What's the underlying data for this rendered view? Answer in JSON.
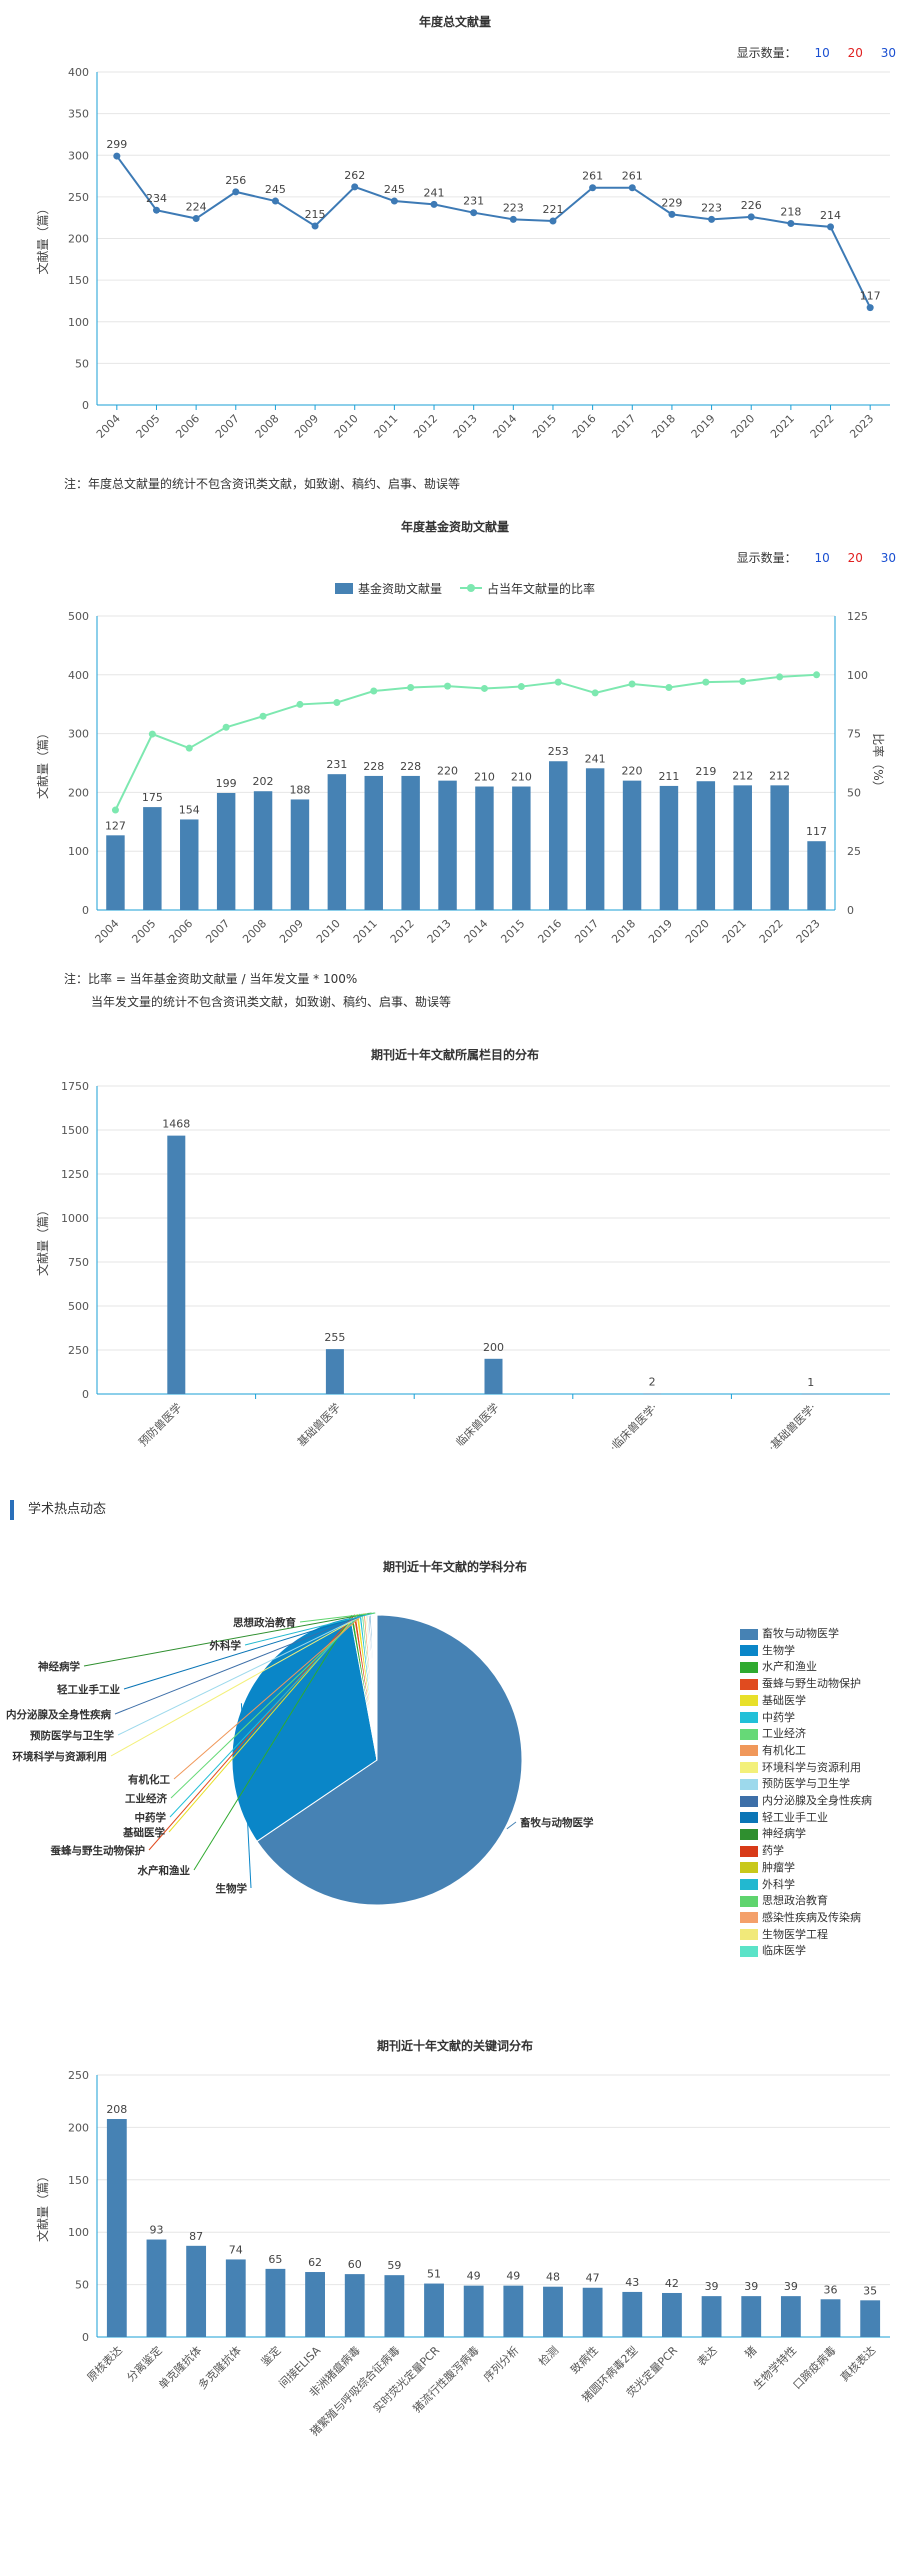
{
  "controls": {
    "label": "显示数量：",
    "options": [
      "10",
      "20",
      "30"
    ],
    "colors": [
      "#1a4fd1",
      "#e02020",
      "#1a4fd1"
    ]
  },
  "chart1": {
    "title": "年度总文献量",
    "note": "注：年度总文献量的统计不包含资讯类文献，如致谢、稿约、启事、勘误等"
  },
  "chart2": {
    "title": "年度基金资助文献量",
    "legend": {
      "bar": "基金资助文献量",
      "line": "占当年文献量的比率"
    },
    "note_line1": "注：比率 = 当年基金资助文献量 / 当年发文量 * 100%",
    "note_line2": "当年发文量的统计不包含资讯类文献，如致谢、稿约、启事、勘误等"
  },
  "chart3": {
    "title": "期刊近十年文献所属栏目的分布"
  },
  "section": {
    "title": "学术热点动态"
  },
  "chart4": {
    "title": "期刊近十年文献的学科分布"
  },
  "chart5": {
    "title": "期刊近十年文献的关键词分布"
  },
  "chart_data": [
    {
      "type": "line",
      "title": "年度总文献量",
      "ylabel": "文献量（篇）",
      "ylim": [
        0,
        400
      ],
      "yticks": [
        0,
        50,
        100,
        150,
        200,
        250,
        300,
        350,
        400
      ],
      "x": [
        "2004",
        "2005",
        "2006",
        "2007",
        "2008",
        "2009",
        "2010",
        "2011",
        "2012",
        "2013",
        "2014",
        "2015",
        "2016",
        "2017",
        "2018",
        "2019",
        "2020",
        "2021",
        "2022",
        "2023"
      ],
      "values": [
        299,
        234,
        224,
        256,
        245,
        215,
        262,
        245,
        241,
        231,
        223,
        221,
        261,
        261,
        229,
        223,
        226,
        218,
        214,
        117
      ],
      "color": "#3d7ab5",
      "grid": true
    },
    {
      "type": "bar",
      "title": "年度基金资助文献量",
      "ylabel": "文献量（篇）",
      "y2label": "比率（%）",
      "ylim": [
        0,
        500
      ],
      "yticks": [
        0,
        100,
        200,
        300,
        400,
        500
      ],
      "y2lim": [
        0,
        125
      ],
      "y2ticks": [
        0,
        25,
        50,
        75,
        100,
        125
      ],
      "categories": [
        "2004",
        "2005",
        "2006",
        "2007",
        "2008",
        "2009",
        "2010",
        "2011",
        "2012",
        "2013",
        "2014",
        "2015",
        "2016",
        "2017",
        "2018",
        "2019",
        "2020",
        "2021",
        "2022",
        "2023"
      ],
      "series": [
        {
          "name": "基金资助文献量",
          "type": "bar",
          "color": "#4682b4",
          "values": [
            127,
            175,
            154,
            199,
            202,
            188,
            231,
            228,
            228,
            220,
            210,
            210,
            253,
            241,
            220,
            211,
            219,
            212,
            212,
            117
          ]
        },
        {
          "name": "占当年文献量的比率",
          "type": "line",
          "axis": "right",
          "color": "#7de8b0",
          "values": [
            42.5,
            74.8,
            68.8,
            77.7,
            82.4,
            87.4,
            88.2,
            93.1,
            94.6,
            95.2,
            94.2,
            95.0,
            96.9,
            92.3,
            96.1,
            94.6,
            96.9,
            97.2,
            99.1,
            100.0
          ]
        }
      ],
      "legend": "top-center",
      "grid": true
    },
    {
      "type": "bar",
      "title": "期刊近十年文献所属栏目的分布",
      "ylabel": "文献量（篇）",
      "ylim": [
        0,
        1750
      ],
      "yticks": [
        0,
        250,
        500,
        750,
        1000,
        1250,
        1500,
        1750
      ],
      "categories": [
        "预防兽医学",
        "基础兽医学",
        "临床兽医学",
        "·临床兽医学·",
        "·基础兽医学·"
      ],
      "values": [
        1468,
        255,
        200,
        2,
        1
      ],
      "color": "#4682b4",
      "grid": true
    },
    {
      "type": "pie",
      "title": "期刊近十年文献的学科分布",
      "slices": [
        {
          "name": "畜牧与动物医学",
          "value": 1241,
          "color": "#4682b4"
        },
        {
          "name": "生物学",
          "value": 598,
          "color": "#0a86c8"
        },
        {
          "name": "水产和渔业",
          "value": 6,
          "color": "#2faa2f"
        },
        {
          "name": "蚕蜂与野生动物保护",
          "value": 6,
          "color": "#e04b1f"
        },
        {
          "name": "基础医学",
          "value": 6,
          "color": "#e8e02a"
        },
        {
          "name": "中药学",
          "value": 5,
          "color": "#22c0d8"
        },
        {
          "name": "工业经济",
          "value": 4,
          "color": "#66d977"
        },
        {
          "name": "有机化工",
          "value": 4,
          "color": "#f0985a"
        },
        {
          "name": "环境科学与资源利用",
          "value": 3,
          "color": "#f3f07a"
        },
        {
          "name": "预防医学与卫生学",
          "value": 3,
          "color": "#9dd9ec"
        },
        {
          "name": "内分泌腺及全身性疾病",
          "value": 3,
          "color": "#3d6fa8"
        },
        {
          "name": "轻工业手工业",
          "value": 3,
          "color": "#0a75b6"
        },
        {
          "name": "神经病学",
          "value": 2,
          "color": "#2f8f2f"
        },
        {
          "name": "药学",
          "value": 2,
          "color": "#d83a18"
        },
        {
          "name": "肿瘤学",
          "value": 2,
          "color": "#c8c81a"
        },
        {
          "name": "外科学",
          "value": 2,
          "color": "#22b8d0"
        },
        {
          "name": "思想政治教育",
          "value": 1,
          "color": "#5fd46e"
        },
        {
          "name": "感染性疾病及传染病",
          "value": 1,
          "color": "#f4a06a"
        },
        {
          "name": "生物医学工程",
          "value": 1,
          "color": "#f1e97a"
        },
        {
          "name": "临床医学",
          "value": 1,
          "color": "#5be3c8"
        }
      ],
      "legend": "right"
    },
    {
      "type": "bar",
      "title": "期刊近十年文献的关键词分布",
      "ylabel": "文献量（篇）",
      "ylim": [
        0,
        250
      ],
      "yticks": [
        0,
        50,
        100,
        150,
        200,
        250
      ],
      "categories": [
        "原核表达",
        "分离鉴定",
        "单克隆抗体",
        "多克隆抗体",
        "鉴定",
        "间接ELISA",
        "非洲猪瘟病毒",
        "猪繁殖与呼吸综合征病毒",
        "实时荧光定量PCR",
        "猪流行性腹泻病毒",
        "序列分析",
        "检测",
        "致病性",
        "猪圆环病毒2型",
        "荧光定量PCR",
        "表达",
        "猪",
        "生物学特性",
        "口蹄疫病毒",
        "真核表达"
      ],
      "values": [
        208,
        93,
        87,
        74,
        65,
        62,
        60,
        59,
        51,
        49,
        49,
        48,
        47,
        43,
        42,
        39,
        39,
        39,
        36,
        35
      ],
      "color": "#4682b4",
      "grid": true
    }
  ]
}
